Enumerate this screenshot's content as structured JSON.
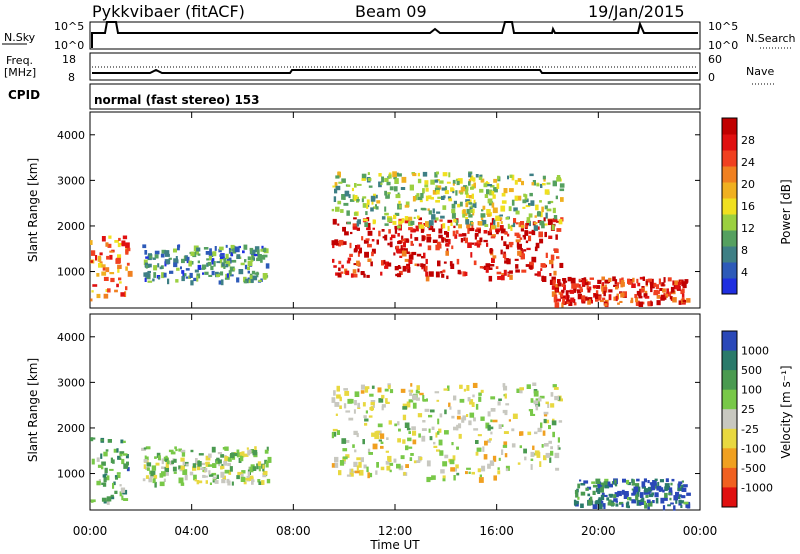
{
  "header": {
    "station": "Pykkvibaer (fitACF)",
    "beam": "Beam 09",
    "date": "19/Jan/2015"
  },
  "panels": {
    "nsky": {
      "label": "N.Sky",
      "ticks": [
        "10^5",
        "10^0"
      ],
      "right_label": "N.Search"
    },
    "freq": {
      "label_line1": "Freq.",
      "label_line2": "[MHz]",
      "left_ticks": [
        "18",
        "8"
      ],
      "right_ticks": [
        "60",
        "0"
      ],
      "right_label": "Nave"
    },
    "cpid": {
      "label": "CPID",
      "text": "normal (fast stereo) 153"
    }
  },
  "axes": {
    "ylabel": "Slant Range [km]",
    "xlabel": "Time UT",
    "yticks": [
      "1000",
      "2000",
      "3000",
      "4000"
    ],
    "xticks": [
      "00:00",
      "04:00",
      "08:00",
      "12:00",
      "16:00",
      "20:00",
      "00:00"
    ]
  },
  "colorbars": {
    "power": {
      "label": "Power [dB]",
      "ticks": [
        "4",
        "8",
        "12",
        "16",
        "20",
        "24",
        "28"
      ],
      "colors": [
        "#1f2fe0",
        "#2d5ab8",
        "#3e7f85",
        "#55a060",
        "#9bd040",
        "#f0e020",
        "#f0b020",
        "#f08020",
        "#f04020",
        "#e01010",
        "#c00000"
      ]
    },
    "velocity": {
      "label": "Velocity [m s⁻¹]",
      "ticks": [
        "1000",
        "500",
        "100",
        "25",
        "-25",
        "-100",
        "-500",
        "-1000"
      ],
      "colors": [
        "#2a48b8",
        "#2a7a6a",
        "#4a9a50",
        "#78c848",
        "#c8c8c0",
        "#e8d840",
        "#f0a020",
        "#f06020",
        "#e01010"
      ]
    }
  },
  "chart_data": [
    {
      "type": "heatmap",
      "title": "Power",
      "xlabel": "Time UT",
      "ylabel": "Slant Range [km]",
      "xlim": [
        0,
        24
      ],
      "ylim": [
        200,
        4500
      ],
      "colorbar": "Power [dB]",
      "blobs": [
        {
          "t0": 0.0,
          "t1": 1.5,
          "r0": 400,
          "r1": 1800,
          "level": 0.7
        },
        {
          "t0": 2.0,
          "t1": 7.0,
          "r0": 800,
          "r1": 1600,
          "level": 0.25
        },
        {
          "t0": 9.5,
          "t1": 18.5,
          "r0": 900,
          "r1": 2200,
          "level": 0.9
        },
        {
          "t0": 9.5,
          "t1": 18.5,
          "r0": 2000,
          "r1": 3200,
          "level": 0.4
        },
        {
          "t0": 18.0,
          "t1": 23.5,
          "r0": 300,
          "r1": 900,
          "level": 0.85
        }
      ]
    },
    {
      "type": "heatmap",
      "title": "Velocity",
      "xlabel": "Time UT",
      "ylabel": "Slant Range [km]",
      "xlim": [
        0,
        24
      ],
      "ylim": [
        200,
        4500
      ],
      "colorbar": "Velocity [m s-1]",
      "blobs": [
        {
          "t0": 0.0,
          "t1": 1.5,
          "r0": 400,
          "r1": 1800,
          "level": 0.3
        },
        {
          "t0": 2.0,
          "t1": 7.0,
          "r0": 800,
          "r1": 1600,
          "level": 0.45
        },
        {
          "t0": 9.5,
          "t1": 18.5,
          "r0": 900,
          "r1": 3000,
          "level": 0.5
        },
        {
          "t0": 19.0,
          "t1": 23.5,
          "r0": 300,
          "r1": 900,
          "level": 0.15
        }
      ]
    }
  ]
}
